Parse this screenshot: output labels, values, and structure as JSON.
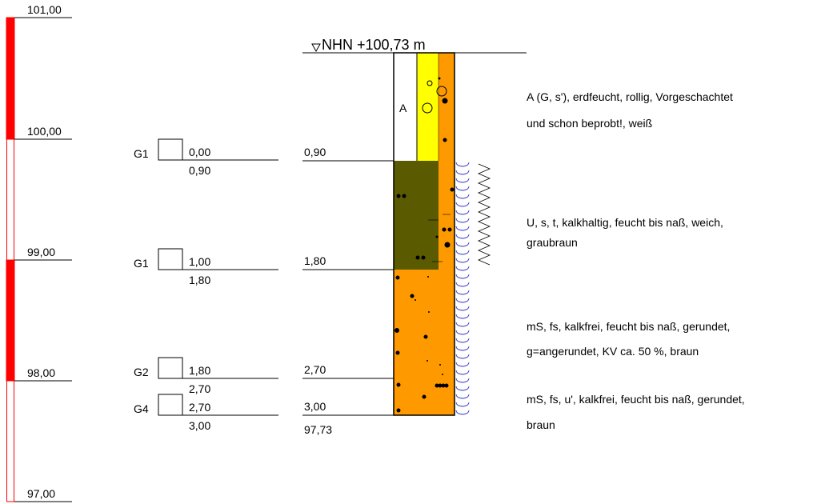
{
  "scale": {
    "labels": [
      "101,00",
      "100,00",
      "99,00",
      "98,00",
      "97,00"
    ]
  },
  "header": {
    "title": "NHN +100,73 m"
  },
  "samples": [
    {
      "name": "G1",
      "top": "0,00",
      "bottom": "0,90"
    },
    {
      "name": "G1",
      "top": "1,00",
      "bottom": "1,80"
    },
    {
      "name": "G2",
      "top": "1,80",
      "bottom": "2,70"
    },
    {
      "name": "G4",
      "top": "2,70",
      "bottom": "3,00"
    }
  ],
  "depths": [
    "0,90",
    "1,80",
    "2,70",
    "3,00"
  ],
  "base_elevation": "97,73",
  "layers": [
    {
      "symbol": "A",
      "description": [
        "A (G, s'), erdfeucht, rollig, Vorgeschachtet",
        "und schon beprobt!, weiß"
      ]
    },
    {
      "description": [
        "U, s, t, kalkhaltig, feucht bis naß, weich,",
        "graubraun"
      ]
    },
    {
      "description": [
        "mS, fs, kalkfrei, feucht bis naß, gerundet,",
        "g=angerundet, KV ca. 50 %, braun"
      ]
    },
    {
      "description": [
        "mS, fs, u', kalkfrei, feucht bis naß, gerundet,",
        "braun"
      ]
    }
  ]
}
